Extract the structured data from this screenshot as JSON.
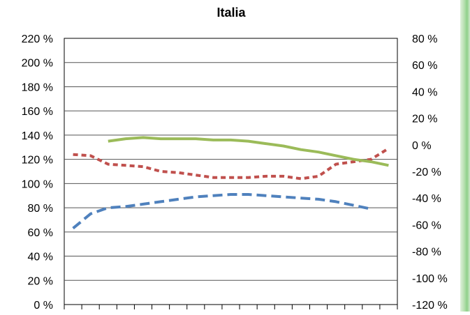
{
  "chart_data": {
    "type": "line",
    "title": "Italia",
    "xlabel": "",
    "ylabel": "",
    "y_left": {
      "lim": [
        0,
        220
      ],
      "ticks": [
        0,
        20,
        40,
        60,
        80,
        100,
        120,
        140,
        160,
        180,
        200,
        220
      ],
      "tick_labels": [
        "0 %",
        "20 %",
        "40 %",
        "60 %",
        "80 %",
        "100 %",
        "120 %",
        "140 %",
        "160 %",
        "180 %",
        "200 %",
        "220 %"
      ]
    },
    "y_right": {
      "lim": [
        -120,
        80
      ],
      "ticks": [
        -120,
        -100,
        -80,
        -60,
        -40,
        -20,
        0,
        20,
        40,
        60,
        80
      ],
      "tick_labels": [
        "-120 %",
        "-100 %",
        "-80 %",
        "-60 %",
        "-40 %",
        "-20 %",
        "0 %",
        "20 %",
        "40 %",
        "60 %",
        "80 %"
      ]
    },
    "x_tick_count": 19,
    "grid": true,
    "legend": "none",
    "series": [
      {
        "axis": "left",
        "style": "dashed",
        "color": "#4f81bd",
        "x": [
          0,
          1,
          2,
          3,
          4,
          5,
          6,
          7,
          8,
          9,
          10,
          11,
          12,
          13,
          14,
          15,
          16,
          17
        ],
        "values": [
          63,
          75,
          80,
          81,
          83,
          85,
          87,
          89,
          90,
          91,
          91,
          90,
          89,
          88,
          87,
          85,
          82,
          79
        ]
      },
      {
        "axis": "left",
        "style": "dotted",
        "color": "#c0504d",
        "x": [
          0,
          1,
          2,
          3,
          4,
          5,
          6,
          7,
          8,
          9,
          10,
          11,
          12,
          13,
          14,
          15,
          16,
          17,
          18
        ],
        "values": [
          124,
          123,
          116,
          115,
          114,
          110,
          109,
          107,
          105,
          105,
          105,
          106,
          106,
          104,
          106,
          116,
          118,
          120,
          129
        ]
      },
      {
        "axis": "left",
        "style": "solid",
        "color": "#9bbb59",
        "x": [
          2,
          3,
          4,
          5,
          6,
          7,
          8,
          9,
          10,
          11,
          12,
          13,
          14,
          15,
          16,
          17,
          18
        ],
        "values": [
          135,
          137,
          138,
          137,
          137,
          137,
          136,
          136,
          135,
          133,
          131,
          128,
          126,
          123,
          120,
          118,
          115
        ]
      }
    ]
  },
  "decor": {
    "strip": "green-gradient"
  }
}
